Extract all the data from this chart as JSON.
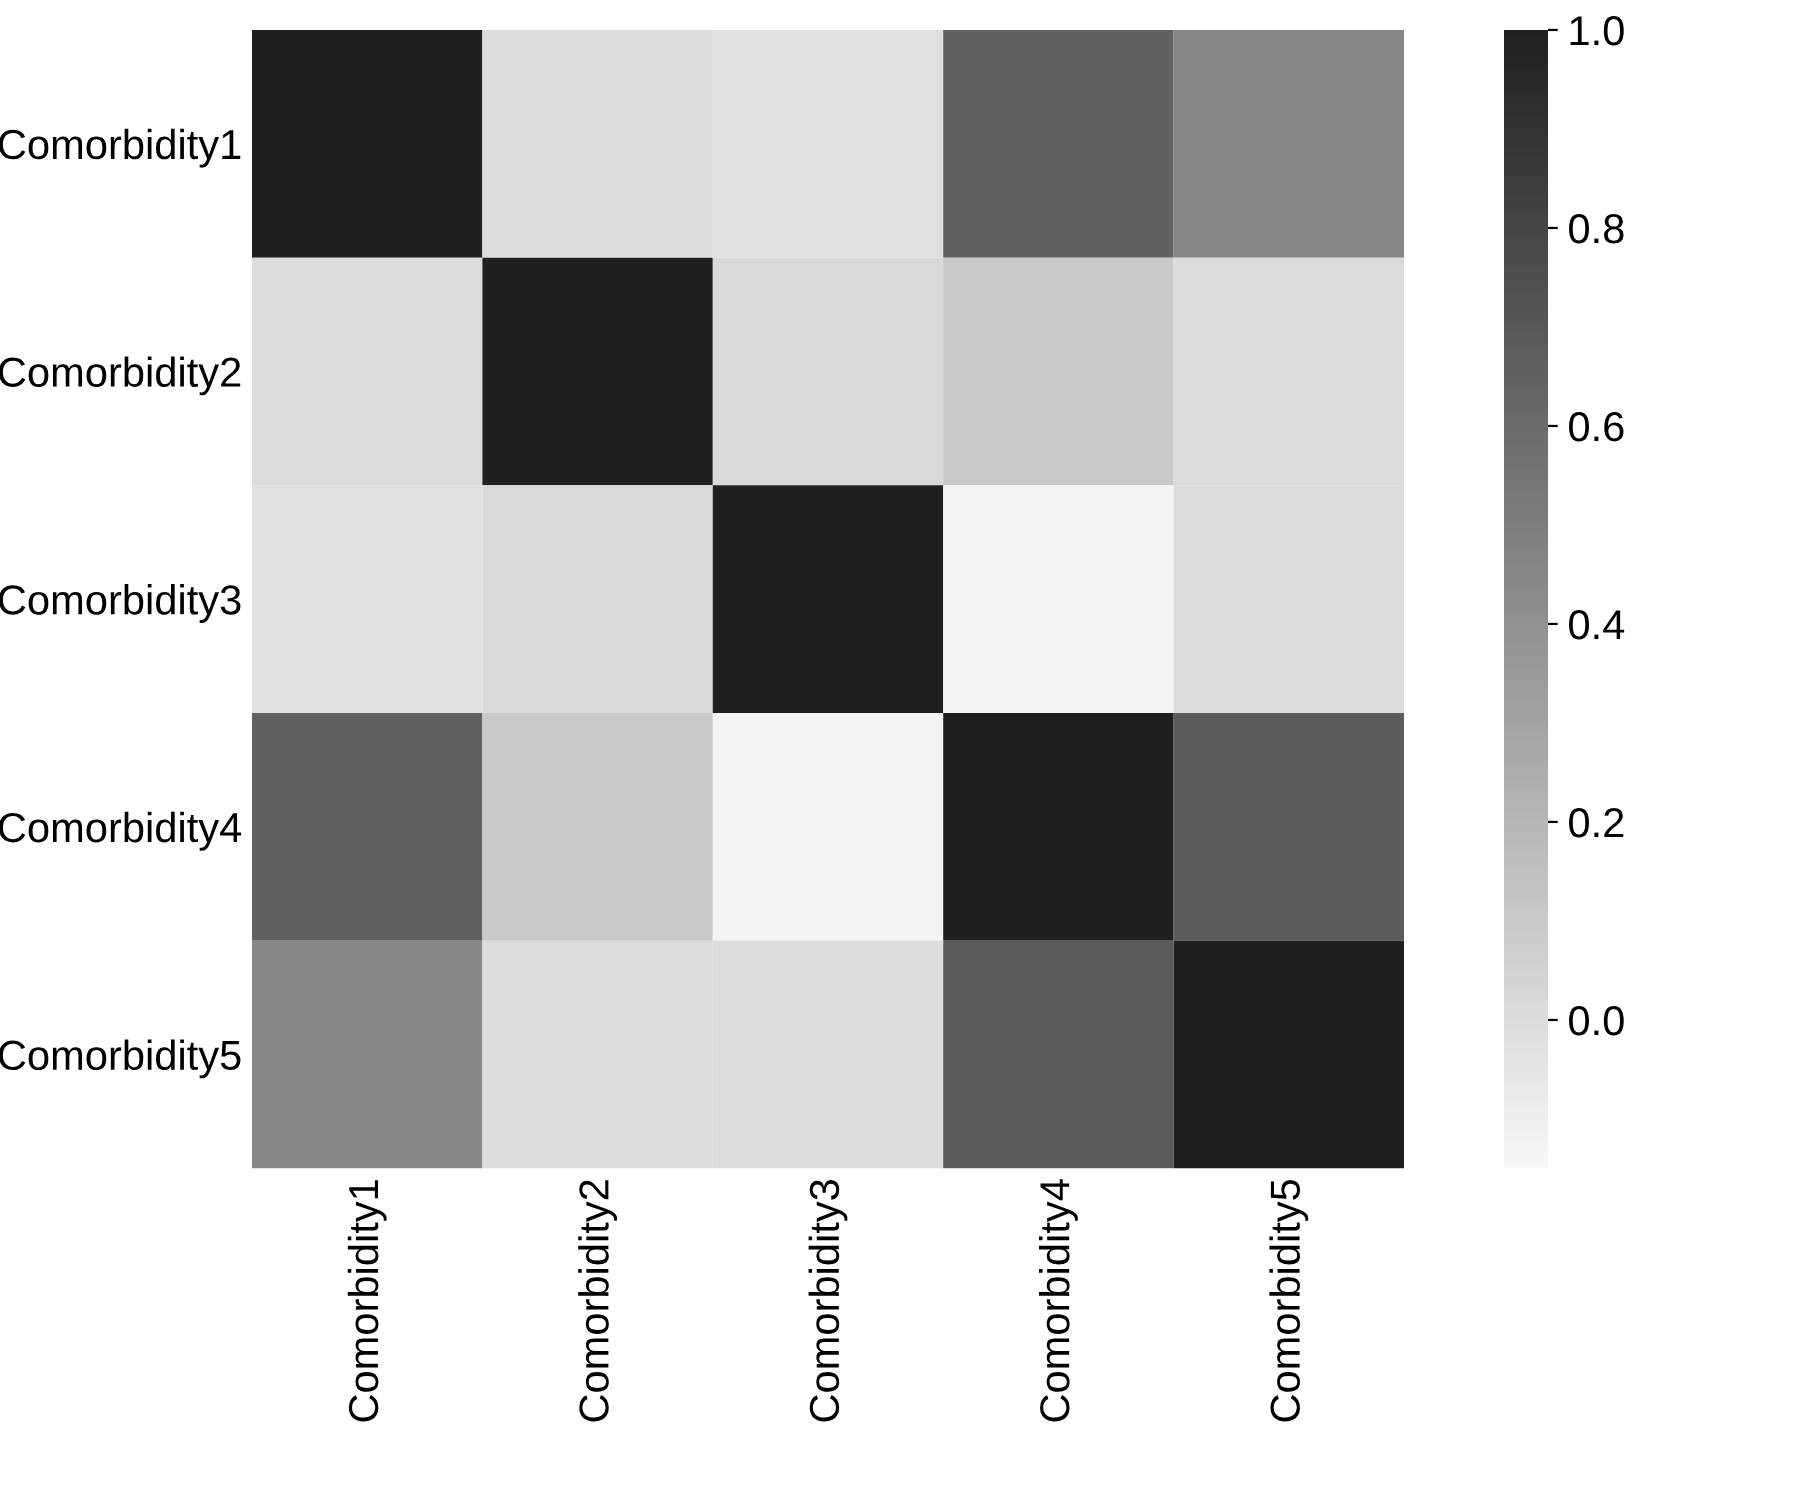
{
  "chart_data": {
    "type": "heatmap",
    "categories": [
      "Comorbidity1",
      "Comorbidity2",
      "Comorbidity3",
      "Comorbidity4",
      "Comorbidity5"
    ],
    "y_categories": [
      "Comorbidity1",
      "Comorbidity2",
      "Comorbidity3",
      "Comorbidity4",
      "Comorbidity5"
    ],
    "cells": [
      [
        1.0,
        0.0,
        -0.02,
        0.65,
        0.45
      ],
      [
        0.0,
        1.0,
        0.02,
        0.1,
        0.0
      ],
      [
        -0.02,
        0.02,
        1.0,
        -0.12,
        0.0
      ],
      [
        0.65,
        0.1,
        -0.12,
        1.0,
        0.68
      ],
      [
        0.45,
        0.0,
        0.0,
        0.68,
        1.0
      ]
    ],
    "colors": [
      "#f8f8f8",
      "#202020"
    ],
    "clim": [
      -0.15,
      1.0
    ],
    "cticks": [
      {
        "value": 0,
        "label": "0.0"
      },
      {
        "value": 0.2,
        "label": "0.2"
      },
      {
        "value": 0.4,
        "label": "0.4"
      },
      {
        "value": 0.6,
        "label": "0.6"
      },
      {
        "value": 0.8,
        "label": "0.8"
      },
      {
        "value": 1,
        "label": "1.0"
      }
    ]
  }
}
